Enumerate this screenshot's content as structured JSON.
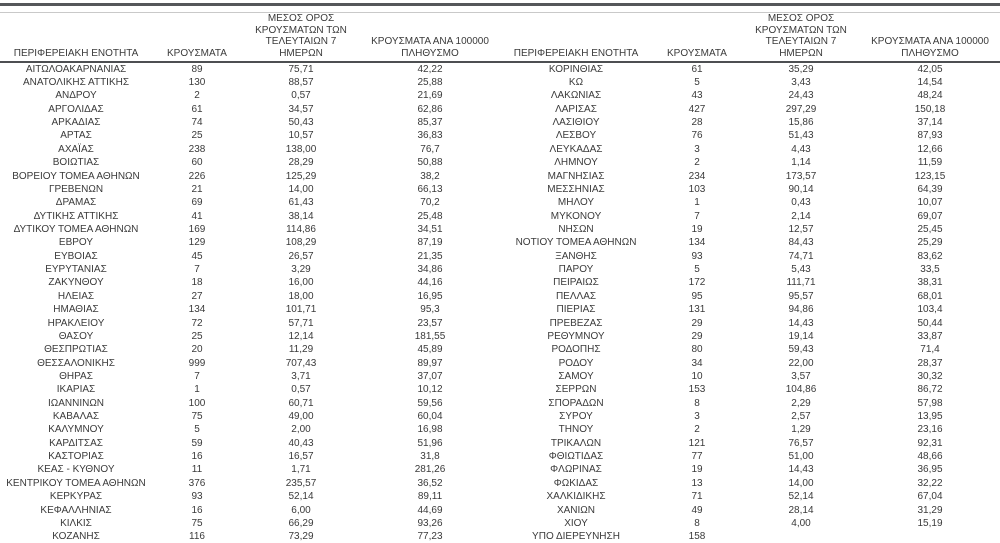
{
  "table": {
    "columns": {
      "region": "ΠΕΡΙΦΕΡΕΙΑΚΗ ΕΝΟΤΗΤΑ",
      "cases": "ΚΡΟΥΣΜΑΤΑ",
      "avg7": "ΜΕΣΟΣ ΟΡΟΣ\nΚΡΟΥΣΜΑΤΩΝ ΤΩΝ\nΤΕΛΕΥΤΑΙΩΝ 7 ΗΜΕΡΩΝ",
      "per100k": "ΚΡΟΥΣΜΑΤΑ ΑΝΑ 100000\nΠΛΗΘΥΣΜΟ"
    },
    "left_rows": [
      {
        "region": "ΑΙΤΩΛΟΑΚΑΡΝΑΝΙΑΣ",
        "cases": "89",
        "avg7": "75,71",
        "per100k": "42,22"
      },
      {
        "region": "ΑΝΑΤΟΛΙΚΗΣ ΑΤΤΙΚΗΣ",
        "cases": "130",
        "avg7": "88,57",
        "per100k": "25,88"
      },
      {
        "region": "ΑΝΔΡΟΥ",
        "cases": "2",
        "avg7": "0,57",
        "per100k": "21,69"
      },
      {
        "region": "ΑΡΓΟΛΙΔΑΣ",
        "cases": "61",
        "avg7": "34,57",
        "per100k": "62,86"
      },
      {
        "region": "ΑΡΚΑΔΙΑΣ",
        "cases": "74",
        "avg7": "50,43",
        "per100k": "85,37"
      },
      {
        "region": "ΑΡΤΑΣ",
        "cases": "25",
        "avg7": "10,57",
        "per100k": "36,83"
      },
      {
        "region": "ΑΧΑΪΑΣ",
        "cases": "238",
        "avg7": "138,00",
        "per100k": "76,7"
      },
      {
        "region": "ΒΟΙΩΤΙΑΣ",
        "cases": "60",
        "avg7": "28,29",
        "per100k": "50,88"
      },
      {
        "region": "ΒΟΡΕΙΟΥ ΤΟΜΕΑ ΑΘΗΝΩΝ",
        "cases": "226",
        "avg7": "125,29",
        "per100k": "38,2"
      },
      {
        "region": "ΓΡΕΒΕΝΩΝ",
        "cases": "21",
        "avg7": "14,00",
        "per100k": "66,13"
      },
      {
        "region": "ΔΡΑΜΑΣ",
        "cases": "69",
        "avg7": "61,43",
        "per100k": "70,2"
      },
      {
        "region": "ΔΥΤΙΚΗΣ ΑΤΤΙΚΗΣ",
        "cases": "41",
        "avg7": "38,14",
        "per100k": "25,48"
      },
      {
        "region": "ΔΥΤΙΚΟΥ ΤΟΜΕΑ ΑΘΗΝΩΝ",
        "cases": "169",
        "avg7": "114,86",
        "per100k": "34,51"
      },
      {
        "region": "ΕΒΡΟΥ",
        "cases": "129",
        "avg7": "108,29",
        "per100k": "87,19"
      },
      {
        "region": "ΕΥΒΟΙΑΣ",
        "cases": "45",
        "avg7": "26,57",
        "per100k": "21,35"
      },
      {
        "region": "ΕΥΡΥΤΑΝΙΑΣ",
        "cases": "7",
        "avg7": "3,29",
        "per100k": "34,86"
      },
      {
        "region": "ΖΑΚΥΝΘΟΥ",
        "cases": "18",
        "avg7": "16,00",
        "per100k": "44,16"
      },
      {
        "region": "ΗΛΕΙΑΣ",
        "cases": "27",
        "avg7": "18,00",
        "per100k": "16,95"
      },
      {
        "region": "ΗΜΑΘΙΑΣ",
        "cases": "134",
        "avg7": "101,71",
        "per100k": "95,3"
      },
      {
        "region": "ΗΡΑΚΛΕΙΟΥ",
        "cases": "72",
        "avg7": "57,71",
        "per100k": "23,57"
      },
      {
        "region": "ΘΑΣΟΥ",
        "cases": "25",
        "avg7": "12,14",
        "per100k": "181,55"
      },
      {
        "region": "ΘΕΣΠΡΩΤΙΑΣ",
        "cases": "20",
        "avg7": "11,29",
        "per100k": "45,89"
      },
      {
        "region": "ΘΕΣΣΑΛΟΝΙΚΗΣ",
        "cases": "999",
        "avg7": "707,43",
        "per100k": "89,97"
      },
      {
        "region": "ΘΗΡΑΣ",
        "cases": "7",
        "avg7": "3,71",
        "per100k": "37,07"
      },
      {
        "region": "ΙΚΑΡΙΑΣ",
        "cases": "1",
        "avg7": "0,57",
        "per100k": "10,12"
      },
      {
        "region": "ΙΩΑΝΝΙΝΩΝ",
        "cases": "100",
        "avg7": "60,71",
        "per100k": "59,56"
      },
      {
        "region": "ΚΑΒΑΛΑΣ",
        "cases": "75",
        "avg7": "49,00",
        "per100k": "60,04"
      },
      {
        "region": "ΚΑΛΥΜΝΟΥ",
        "cases": "5",
        "avg7": "2,00",
        "per100k": "16,98"
      },
      {
        "region": "ΚΑΡΔΙΤΣΑΣ",
        "cases": "59",
        "avg7": "40,43",
        "per100k": "51,96"
      },
      {
        "region": "ΚΑΣΤΟΡΙΑΣ",
        "cases": "16",
        "avg7": "16,57",
        "per100k": "31,8"
      },
      {
        "region": "ΚΕΑΣ - ΚΥΘΝΟΥ",
        "cases": "11",
        "avg7": "1,71",
        "per100k": "281,26"
      },
      {
        "region": "ΚΕΝΤΡΙΚΟΥ ΤΟΜΕΑ ΑΘΗΝΩΝ",
        "cases": "376",
        "avg7": "235,57",
        "per100k": "36,52"
      },
      {
        "region": "ΚΕΡΚΥΡΑΣ",
        "cases": "93",
        "avg7": "52,14",
        "per100k": "89,11"
      },
      {
        "region": "ΚΕΦΑΛΛΗΝΙΑΣ",
        "cases": "16",
        "avg7": "6,00",
        "per100k": "44,69"
      },
      {
        "region": "ΚΙΛΚΙΣ",
        "cases": "75",
        "avg7": "66,29",
        "per100k": "93,26"
      },
      {
        "region": "ΚΟΖΑΝΗΣ",
        "cases": "116",
        "avg7": "73,29",
        "per100k": "77,23"
      }
    ],
    "right_rows": [
      {
        "region": "ΚΟΡΙΝΘΙΑΣ",
        "cases": "61",
        "avg7": "35,29",
        "per100k": "42,05"
      },
      {
        "region": "ΚΩ",
        "cases": "5",
        "avg7": "3,43",
        "per100k": "14,54"
      },
      {
        "region": "ΛΑΚΩΝΙΑΣ",
        "cases": "43",
        "avg7": "24,43",
        "per100k": "48,24"
      },
      {
        "region": "ΛΑΡΙΣΑΣ",
        "cases": "427",
        "avg7": "297,29",
        "per100k": "150,18"
      },
      {
        "region": "ΛΑΣΙΘΙΟΥ",
        "cases": "28",
        "avg7": "15,86",
        "per100k": "37,14"
      },
      {
        "region": "ΛΕΣΒΟΥ",
        "cases": "76",
        "avg7": "51,43",
        "per100k": "87,93"
      },
      {
        "region": "ΛΕΥΚΑΔΑΣ",
        "cases": "3",
        "avg7": "4,43",
        "per100k": "12,66"
      },
      {
        "region": "ΛΗΜΝΟΥ",
        "cases": "2",
        "avg7": "1,14",
        "per100k": "11,59"
      },
      {
        "region": "ΜΑΓΝΗΣΙΑΣ",
        "cases": "234",
        "avg7": "173,57",
        "per100k": "123,15"
      },
      {
        "region": "ΜΕΣΣΗΝΙΑΣ",
        "cases": "103",
        "avg7": "90,14",
        "per100k": "64,39"
      },
      {
        "region": "ΜΗΛΟΥ",
        "cases": "1",
        "avg7": "0,43",
        "per100k": "10,07"
      },
      {
        "region": "ΜΥΚΟΝΟΥ",
        "cases": "7",
        "avg7": "2,14",
        "per100k": "69,07"
      },
      {
        "region": "ΝΗΣΩΝ",
        "cases": "19",
        "avg7": "12,57",
        "per100k": "25,45"
      },
      {
        "region": "ΝΟΤΙΟΥ ΤΟΜΕΑ ΑΘΗΝΩΝ",
        "cases": "134",
        "avg7": "84,43",
        "per100k": "25,29"
      },
      {
        "region": "ΞΑΝΘΗΣ",
        "cases": "93",
        "avg7": "74,71",
        "per100k": "83,62"
      },
      {
        "region": "ΠΑΡΟΥ",
        "cases": "5",
        "avg7": "5,43",
        "per100k": "33,5"
      },
      {
        "region": "ΠΕΙΡΑΙΩΣ",
        "cases": "172",
        "avg7": "111,71",
        "per100k": "38,31"
      },
      {
        "region": "ΠΕΛΛΑΣ",
        "cases": "95",
        "avg7": "95,57",
        "per100k": "68,01"
      },
      {
        "region": "ΠΙΕΡΙΑΣ",
        "cases": "131",
        "avg7": "94,86",
        "per100k": "103,4"
      },
      {
        "region": "ΠΡΕΒΕΖΑΣ",
        "cases": "29",
        "avg7": "14,43",
        "per100k": "50,44"
      },
      {
        "region": "ΡΕΘΥΜΝΟΥ",
        "cases": "29",
        "avg7": "19,14",
        "per100k": "33,87"
      },
      {
        "region": "ΡΟΔΟΠΗΣ",
        "cases": "80",
        "avg7": "59,43",
        "per100k": "71,4"
      },
      {
        "region": "ΡΟΔΟΥ",
        "cases": "34",
        "avg7": "22,00",
        "per100k": "28,37"
      },
      {
        "region": "ΣΑΜΟΥ",
        "cases": "10",
        "avg7": "3,57",
        "per100k": "30,32"
      },
      {
        "region": "ΣΕΡΡΩΝ",
        "cases": "153",
        "avg7": "104,86",
        "per100k": "86,72"
      },
      {
        "region": "ΣΠΟΡΑΔΩΝ",
        "cases": "8",
        "avg7": "2,29",
        "per100k": "57,98"
      },
      {
        "region": "ΣΥΡΟΥ",
        "cases": "3",
        "avg7": "2,57",
        "per100k": "13,95"
      },
      {
        "region": "ΤΗΝΟΥ",
        "cases": "2",
        "avg7": "1,29",
        "per100k": "23,16"
      },
      {
        "region": "ΤΡΙΚΑΛΩΝ",
        "cases": "121",
        "avg7": "76,57",
        "per100k": "92,31"
      },
      {
        "region": "ΦΘΙΩΤΙΔΑΣ",
        "cases": "77",
        "avg7": "51,00",
        "per100k": "48,66"
      },
      {
        "region": "ΦΛΩΡΙΝΑΣ",
        "cases": "19",
        "avg7": "14,43",
        "per100k": "36,95"
      },
      {
        "region": "ΦΩΚΙΔΑΣ",
        "cases": "13",
        "avg7": "14,00",
        "per100k": "32,22"
      },
      {
        "region": "ΧΑΛΚΙΔΙΚΗΣ",
        "cases": "71",
        "avg7": "52,14",
        "per100k": "67,04"
      },
      {
        "region": "ΧΑΝΙΩΝ",
        "cases": "49",
        "avg7": "28,14",
        "per100k": "31,29"
      },
      {
        "region": "ΧΙΟΥ",
        "cases": "8",
        "avg7": "4,00",
        "per100k": "15,19"
      },
      {
        "region": "ΥΠΟ ΔΙΕΡΕΥΝΗΣΗ",
        "cases": "158",
        "avg7": "",
        "per100k": ""
      }
    ]
  },
  "colors": {
    "rule_dark": "#55575a",
    "rule_light": "#c9c9c9",
    "text": "#3a3a3a"
  }
}
